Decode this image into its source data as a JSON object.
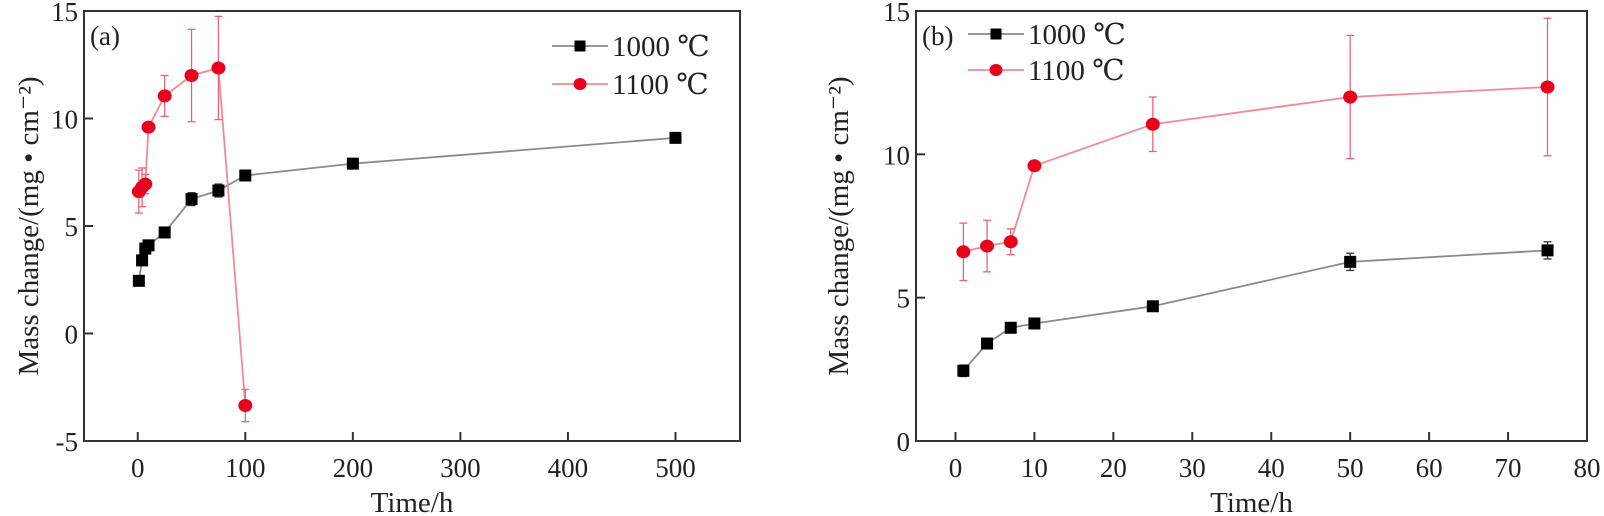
{
  "chart_data": [
    {
      "type": "line",
      "panel_label": "(a)",
      "title": "",
      "xlabel": "Time/h",
      "ylabel": "Mass change/(mg • cm⁻²)",
      "xlim": [
        -50,
        560
      ],
      "ylim": [
        -5,
        15
      ],
      "xticks": [
        0,
        100,
        200,
        300,
        400,
        500
      ],
      "yticks": [
        -5,
        0,
        5,
        10,
        15
      ],
      "grid": false,
      "legend_position": "top-right",
      "series": [
        {
          "name": "1000 ℃",
          "color": "#000000",
          "line_color": "#8a8a8a",
          "marker": "square",
          "x": [
            1,
            4,
            7,
            10,
            25,
            50,
            75,
            100,
            200,
            500
          ],
          "y": [
            2.45,
            3.4,
            3.95,
            4.1,
            4.7,
            6.25,
            6.65,
            7.35,
            7.9,
            9.1
          ],
          "err": [
            0.2,
            0.1,
            0.1,
            0.1,
            0.1,
            0.3,
            0.3,
            0.1,
            0.1,
            0.1
          ]
        },
        {
          "name": "1100 ℃",
          "color": "#e8001c",
          "line_color": "#f08a96",
          "marker": "circle",
          "x": [
            1,
            4,
            7,
            10,
            25,
            50,
            75,
            100
          ],
          "y": [
            6.6,
            6.8,
            6.95,
            9.6,
            11.05,
            12.0,
            12.35,
            -3.35
          ],
          "err": [
            1.0,
            0.9,
            0.45,
            0.0,
            0.95,
            2.15,
            2.4,
            0.75
          ]
        }
      ]
    },
    {
      "type": "line",
      "panel_label": "(b)",
      "title": "",
      "xlabel": "Time/h",
      "ylabel": "Mass change/(mg • cm⁻²)",
      "xlim": [
        -5,
        80
      ],
      "ylim": [
        0,
        15
      ],
      "xticks": [
        0,
        10,
        20,
        30,
        40,
        50,
        60,
        70,
        80
      ],
      "yticks": [
        0,
        5,
        10,
        15
      ],
      "grid": false,
      "legend_position": "top-left",
      "series": [
        {
          "name": "1000 ℃",
          "color": "#000000",
          "line_color": "#8a8a8a",
          "marker": "square",
          "x": [
            1,
            4,
            7,
            10,
            25,
            50,
            75
          ],
          "y": [
            2.45,
            3.4,
            3.95,
            4.1,
            4.7,
            6.25,
            6.65
          ],
          "err": [
            0.2,
            0.1,
            0.1,
            0.1,
            0.1,
            0.3,
            0.3
          ]
        },
        {
          "name": "1100 ℃",
          "color": "#e8001c",
          "line_color": "#f08a96",
          "marker": "circle",
          "x": [
            1,
            4,
            7,
            10,
            25,
            50,
            75
          ],
          "y": [
            6.6,
            6.8,
            6.95,
            9.6,
            11.05,
            12.0,
            12.35
          ],
          "err": [
            1.0,
            0.9,
            0.45,
            0.0,
            0.95,
            2.15,
            2.4
          ]
        }
      ]
    }
  ]
}
